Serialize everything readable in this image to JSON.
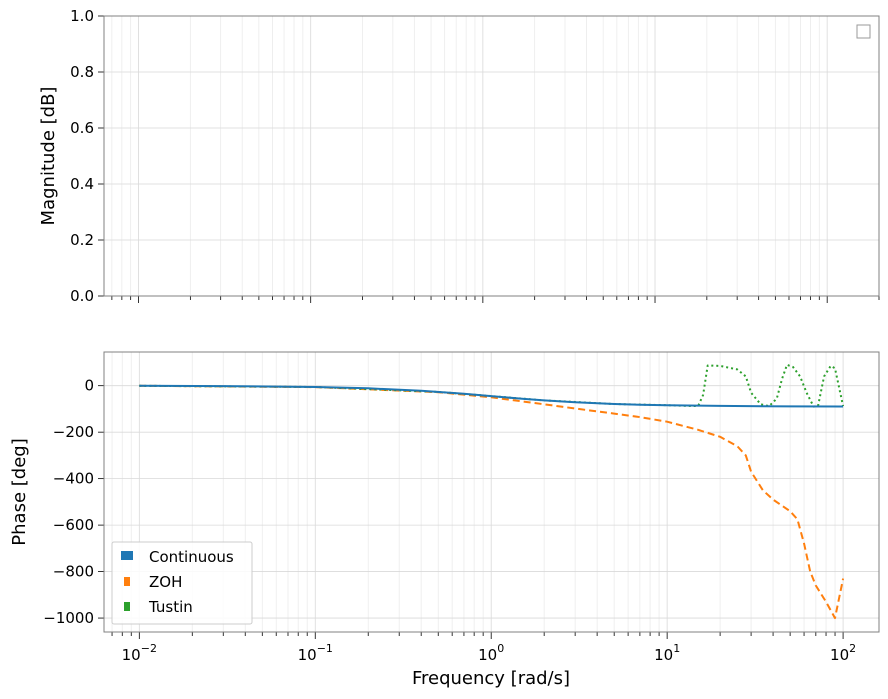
{
  "chart_data": [
    {
      "type": "line",
      "ylabel": "Magnitude [dB]",
      "xlabel": "",
      "xscale": "log",
      "xlim": [
        0.0063,
        200
      ],
      "ylim": [
        0,
        1
      ],
      "yticks": [
        0.0,
        0.2,
        0.4,
        0.6,
        0.8,
        1.0
      ],
      "ytick_labels": [
        "0.0",
        "0.2",
        "0.4",
        "0.6",
        "0.8",
        "1.0"
      ],
      "grid": true,
      "legend": {
        "placement": "top-right",
        "entries": []
      },
      "series": []
    },
    {
      "type": "line",
      "ylabel": "Phase [deg]",
      "xlabel": "Frequency [rad/s]",
      "xscale": "log",
      "xlim": [
        0.0063,
        160
      ],
      "ylim": [
        -1060,
        145
      ],
      "xticks": [
        0.01,
        0.1,
        1,
        10,
        100
      ],
      "xtick_labels": [
        "10",
        "10",
        "10",
        "10",
        "10"
      ],
      "xtick_exponents": [
        "−2",
        "−1",
        "0",
        "1",
        "2"
      ],
      "yticks": [
        0,
        -200,
        -400,
        -600,
        -800,
        -1000
      ],
      "ytick_labels": [
        "0",
        "−200",
        "−400",
        "−600",
        "−800",
        "−1000"
      ],
      "grid": true,
      "legend": {
        "placement": "lower-left"
      },
      "series": [
        {
          "name": "Continuous",
          "color": "#1f77b4",
          "style": "solid",
          "x": [
            0.01,
            0.03,
            0.1,
            0.2,
            0.4,
            0.7,
            1.0,
            1.5,
            2,
            3,
            5,
            7,
            10,
            20,
            50,
            100
          ],
          "y": [
            -0.6,
            -1.7,
            -5.7,
            -11.3,
            -21.8,
            -35,
            -45,
            -56.3,
            -63.4,
            -71.6,
            -78.7,
            -81.9,
            -84.3,
            -87.1,
            -88.9,
            -89.4
          ]
        },
        {
          "name": "ZOH",
          "color": "#ff7f0e",
          "style": "dashed",
          "x": [
            0.01,
            0.1,
            0.5,
            1,
            2,
            3,
            5,
            7,
            10,
            15,
            20,
            25,
            28,
            30,
            35,
            40,
            50,
            55,
            60,
            65,
            70,
            80,
            90,
            100
          ],
          "y": [
            -0.6,
            -6,
            -28,
            -50,
            -80,
            -98,
            -120,
            -135,
            -155,
            -190,
            -220,
            -260,
            -300,
            -370,
            -450,
            -490,
            -540,
            -575,
            -680,
            -800,
            -860,
            -930,
            -1000,
            -830
          ]
        },
        {
          "name": "Tustin",
          "color": "#2ca02c",
          "style": "dotted",
          "x": [
            0.01,
            0.1,
            0.5,
            1,
            2,
            5,
            10,
            13,
            15,
            16,
            17,
            20,
            25,
            28,
            30,
            34,
            38,
            42,
            45,
            48,
            52,
            57,
            62,
            68,
            72,
            78,
            85,
            90,
            95,
            100
          ],
          "y": [
            -0.6,
            -5.7,
            -26.6,
            -45,
            -63.4,
            -78.7,
            -84,
            -87,
            -88,
            -40,
            87,
            85,
            70,
            40,
            -30,
            -80,
            -88,
            -55,
            30,
            90,
            80,
            40,
            -30,
            -90,
            -88,
            40,
            85,
            75,
            -10,
            -88
          ]
        }
      ]
    }
  ]
}
